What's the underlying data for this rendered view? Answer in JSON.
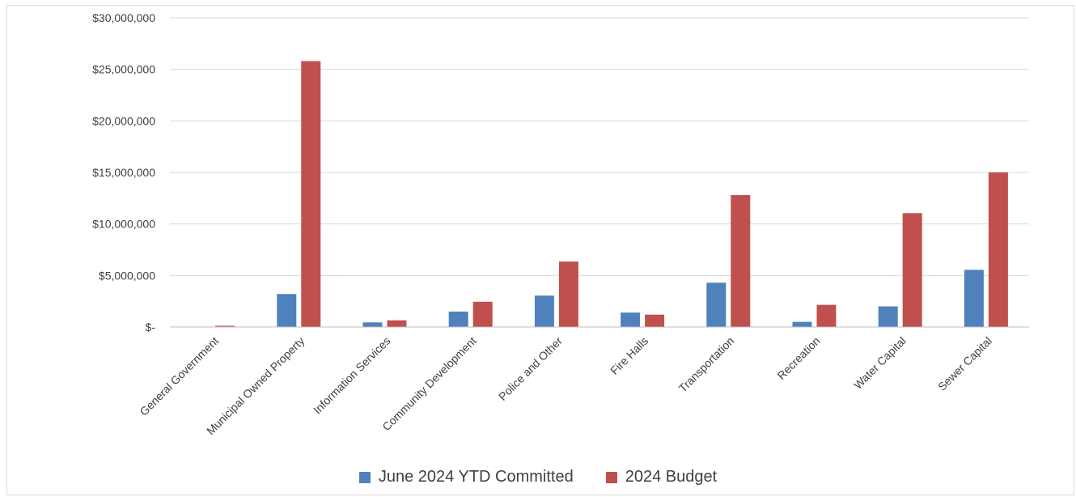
{
  "chart_data": {
    "type": "bar",
    "categories": [
      "General Government",
      "Municipal Owned Property",
      "Information Services",
      "Community Development",
      "Police and Other",
      "Fire Halls",
      "Transportation",
      "Recreation",
      "Water Capital",
      "Sewer Capital"
    ],
    "series": [
      {
        "name": "June 2024 YTD Committed",
        "color": "#4f81bd",
        "values": [
          0,
          3200000,
          450000,
          1500000,
          3050000,
          1400000,
          4300000,
          500000,
          2000000,
          5550000
        ]
      },
      {
        "name": "2024 Budget",
        "color": "#c0504d",
        "values": [
          120000,
          25800000,
          650000,
          2450000,
          6350000,
          1200000,
          12800000,
          2150000,
          11050000,
          15000000
        ]
      }
    ],
    "ylim": [
      0,
      30000000
    ],
    "yticks": [
      0,
      5000000,
      10000000,
      15000000,
      20000000,
      25000000,
      30000000
    ],
    "ytick_labels": [
      "$-",
      "$5,000,000",
      "$10,000,000",
      "$15,000,000",
      "$20,000,000",
      "$25,000,000",
      "$30,000,000"
    ],
    "legend_position": "bottom",
    "grid": true
  }
}
